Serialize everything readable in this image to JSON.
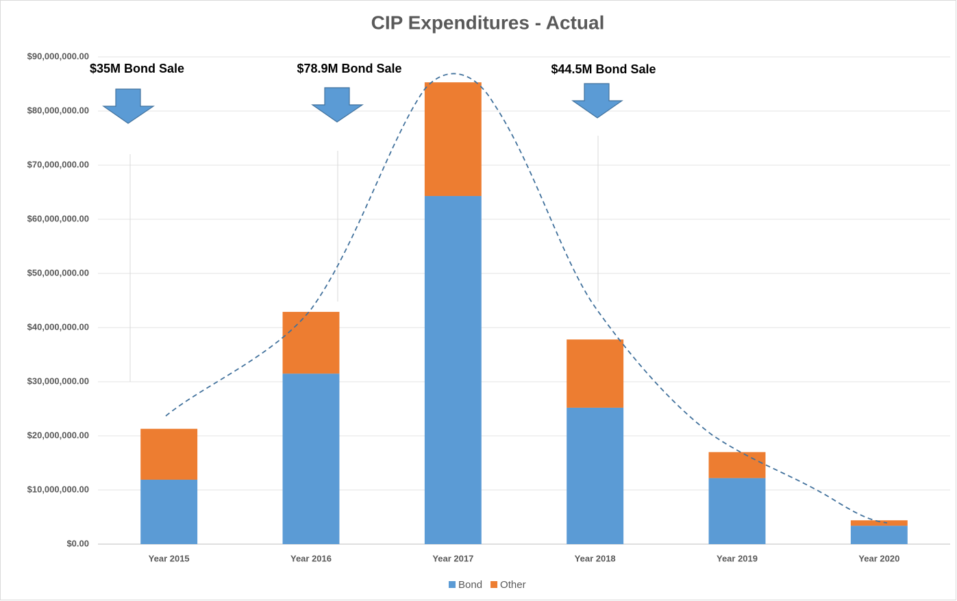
{
  "chart_data": {
    "type": "stacked_bar",
    "title": "CIP Expenditures - Actual",
    "categories": [
      "Year 2015",
      "Year 2016",
      "Year 2017",
      "Year 2018",
      "Year 2019",
      "Year 2020"
    ],
    "series": [
      {
        "name": "Bond",
        "color": "#5b9bd5",
        "values": [
          11900000,
          31500000,
          64300000,
          25200000,
          12200000,
          3400000
        ]
      },
      {
        "name": "Other",
        "color": "#ed7d31",
        "values": [
          9400000,
          11400000,
          21000000,
          12600000,
          4800000,
          1000000
        ]
      }
    ],
    "ylim": [
      0,
      90000000
    ],
    "yticks": [
      {
        "value": 0,
        "label": "$0.00"
      },
      {
        "value": 10000000,
        "label": "$10,000,000.00"
      },
      {
        "value": 20000000,
        "label": "$20,000,000.00"
      },
      {
        "value": 30000000,
        "label": "$30,000,000.00"
      },
      {
        "value": 40000000,
        "label": "$40,000,000.00"
      },
      {
        "value": 50000000,
        "label": "$50,000,000.00"
      },
      {
        "value": 60000000,
        "label": "$60,000,000.00"
      },
      {
        "value": 70000000,
        "label": "$70,000,000.00"
      },
      {
        "value": 80000000,
        "label": "$80,000,000.00"
      },
      {
        "value": 90000000,
        "label": "$90,000,000.00"
      }
    ],
    "grid": true,
    "legend": "bottom",
    "annotations": [
      "$35M Bond Sale",
      "$78.9M Bond Sale",
      "$44.5M Bond Sale"
    ]
  }
}
